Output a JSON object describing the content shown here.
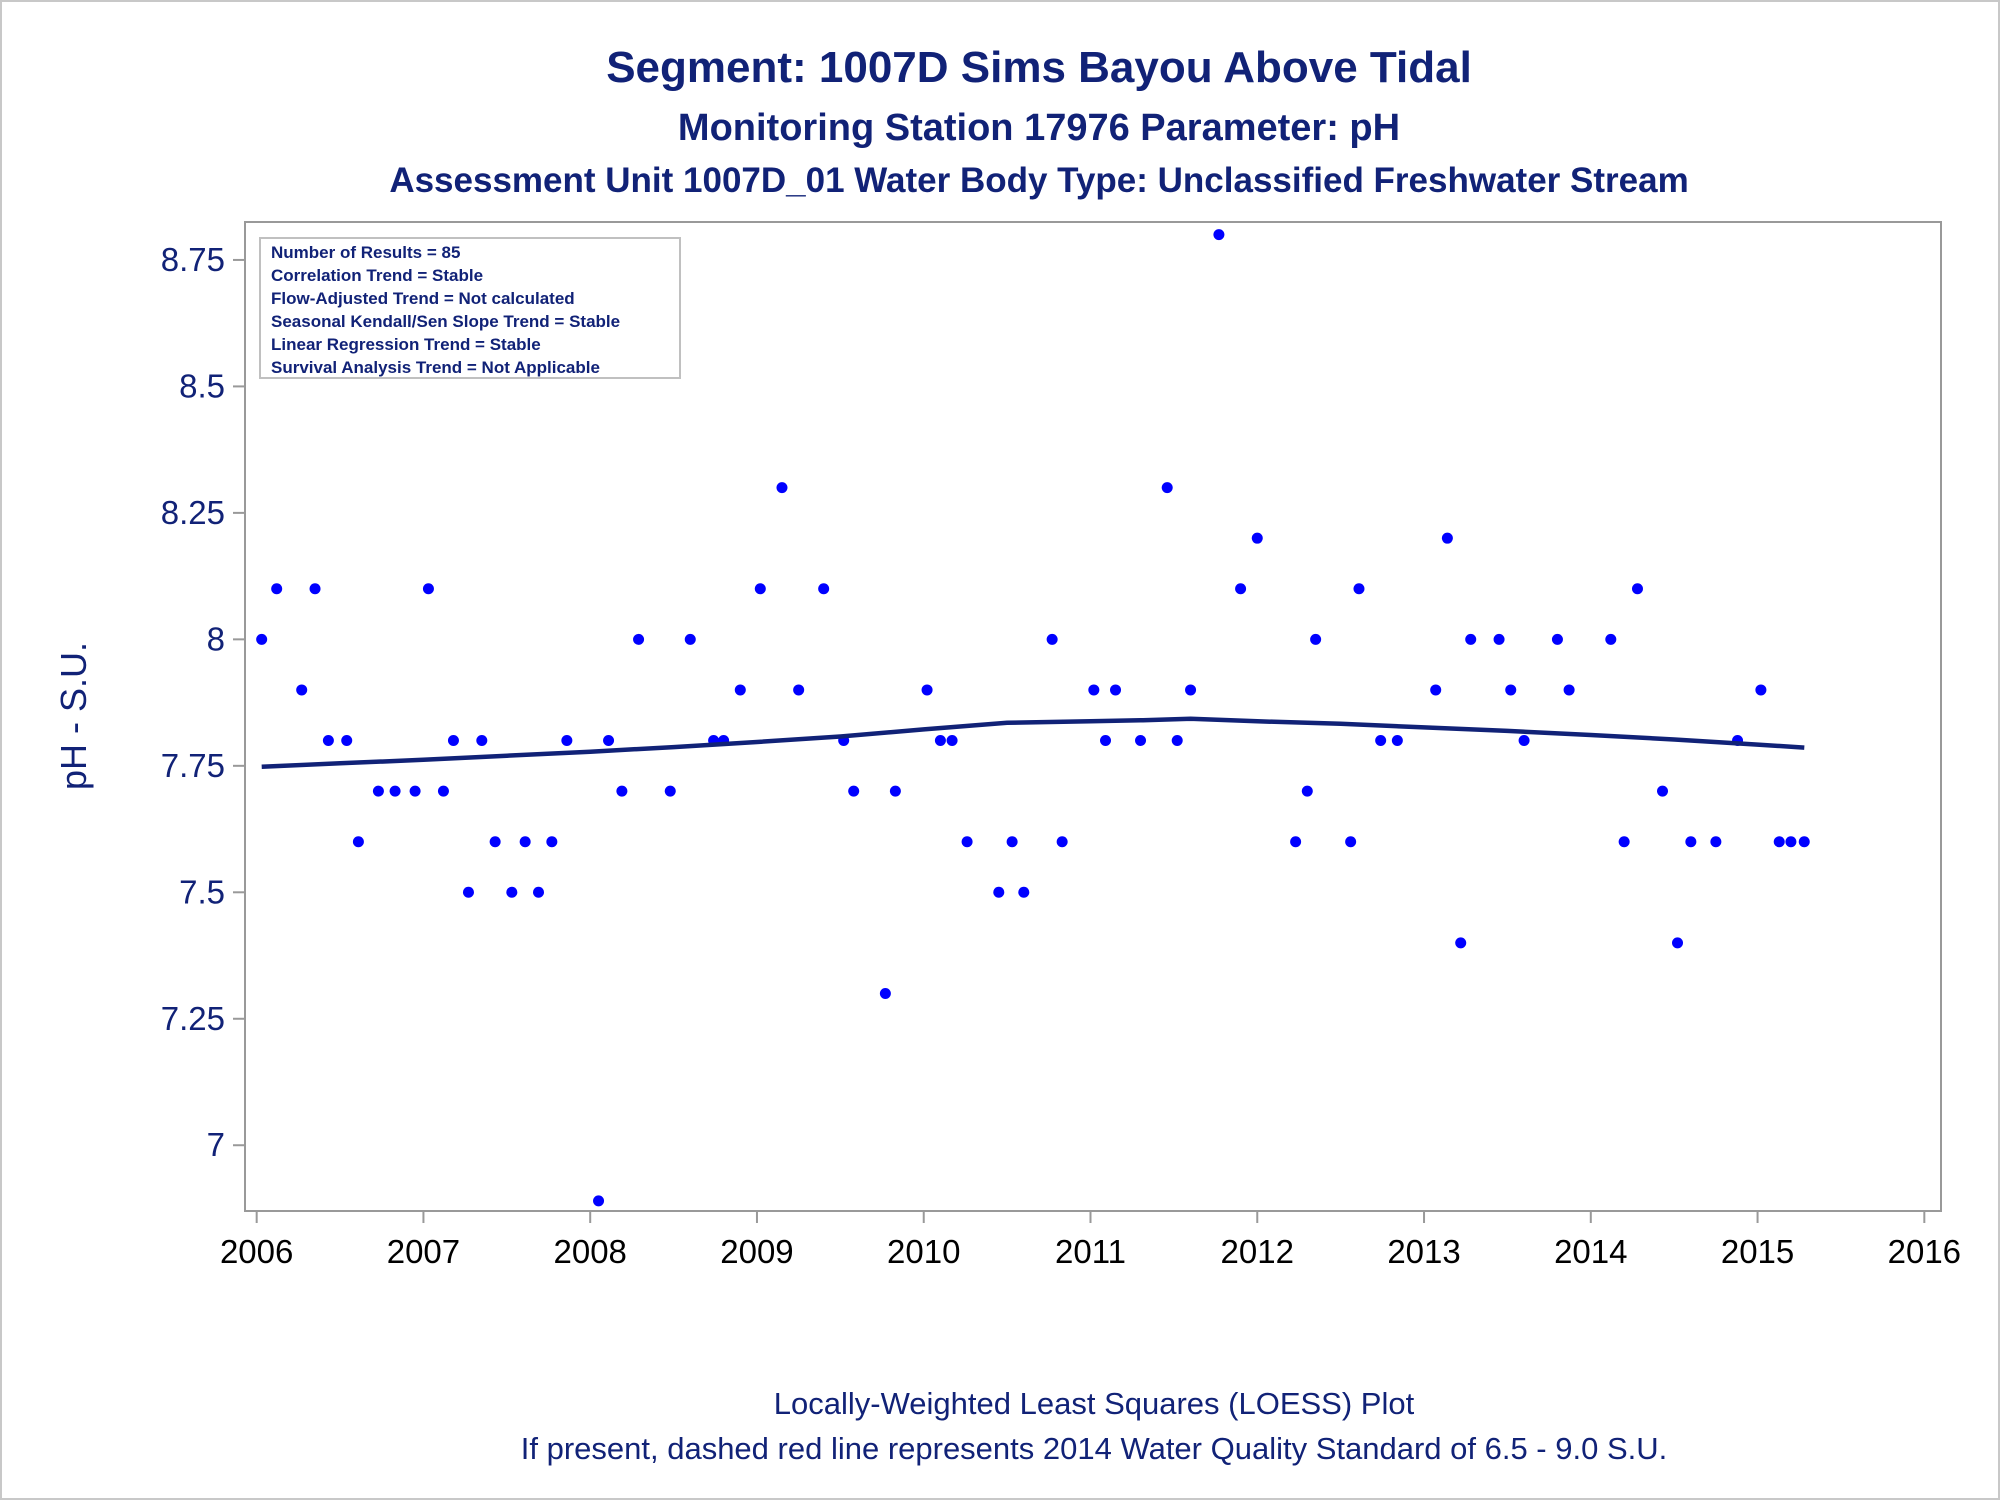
{
  "titles": {
    "line1": "Segment: 1007D  Sims Bayou Above Tidal",
    "line2": "Monitoring Station 17976 Parameter: pH",
    "line3": "Assessment Unit 1007D_01   Water Body Type: Unclassified Freshwater Stream"
  },
  "footnotes": {
    "line1": "Locally-Weighted Least Squares (LOESS) Plot",
    "line2": "If present, dashed red line represents 2014 Water Quality Standard of 6.5 - 9.0 S.U."
  },
  "stats_box": [
    "Number of Results = 85",
    "Correlation Trend = Stable",
    "Flow-Adjusted Trend = Not calculated",
    "Seasonal Kendall/Sen Slope Trend = Stable",
    "Linear Regression Trend = Stable",
    "Survival Analysis Trend = Not Applicable"
  ],
  "chart_data": {
    "type": "scatter",
    "ylabel": "pH - S.U.",
    "xlabel": "",
    "xlim": [
      2005.93,
      2016.1
    ],
    "ylim": [
      6.87,
      8.825
    ],
    "x_ticks": [
      2006,
      2007,
      2008,
      2009,
      2010,
      2011,
      2012,
      2013,
      2014,
      2015,
      2016
    ],
    "x_tick_labels": [
      "2006",
      "2007",
      "2008",
      "2009",
      "2010",
      "2011",
      "2012",
      "2013",
      "2014",
      "2015",
      "2016"
    ],
    "y_ticks": [
      7,
      7.25,
      7.5,
      7.75,
      8,
      8.25,
      8.5,
      8.75
    ],
    "y_tick_labels": [
      "7",
      "7.25",
      "7.5",
      "7.75",
      "8",
      "8.25",
      "8.5",
      "8.75"
    ],
    "grid": false,
    "colors": {
      "points": "#0000ff",
      "loess": "#112277",
      "frame": "#999999",
      "text": "#112277"
    },
    "points": [
      [
        2006.03,
        8.0
      ],
      [
        2006.12,
        8.1
      ],
      [
        2006.27,
        7.9
      ],
      [
        2006.35,
        8.1
      ],
      [
        2006.43,
        7.8
      ],
      [
        2006.54,
        7.8
      ],
      [
        2006.61,
        7.6
      ],
      [
        2006.73,
        7.7
      ],
      [
        2006.83,
        7.7
      ],
      [
        2006.95,
        7.7
      ],
      [
        2007.03,
        8.1
      ],
      [
        2007.12,
        7.7
      ],
      [
        2007.18,
        7.8
      ],
      [
        2007.27,
        7.5
      ],
      [
        2007.35,
        7.8
      ],
      [
        2007.43,
        7.6
      ],
      [
        2007.53,
        7.5
      ],
      [
        2007.61,
        7.6
      ],
      [
        2007.69,
        7.5
      ],
      [
        2007.77,
        7.6
      ],
      [
        2007.86,
        7.8
      ],
      [
        2008.05,
        6.89
      ],
      [
        2008.11,
        7.8
      ],
      [
        2008.19,
        7.7
      ],
      [
        2008.29,
        8.0
      ],
      [
        2008.48,
        7.7
      ],
      [
        2008.6,
        8.0
      ],
      [
        2008.74,
        7.8
      ],
      [
        2008.8,
        7.8
      ],
      [
        2008.9,
        7.9
      ],
      [
        2009.02,
        8.1
      ],
      [
        2009.15,
        8.3
      ],
      [
        2009.25,
        7.9
      ],
      [
        2009.4,
        8.1
      ],
      [
        2009.52,
        7.8
      ],
      [
        2009.58,
        7.7
      ],
      [
        2009.77,
        7.3
      ],
      [
        2009.83,
        7.7
      ],
      [
        2010.02,
        7.9
      ],
      [
        2010.1,
        7.8
      ],
      [
        2010.17,
        7.8
      ],
      [
        2010.26,
        7.6
      ],
      [
        2010.45,
        7.5
      ],
      [
        2010.53,
        7.6
      ],
      [
        2010.6,
        7.5
      ],
      [
        2010.77,
        8.0
      ],
      [
        2010.83,
        7.6
      ],
      [
        2011.02,
        7.9
      ],
      [
        2011.09,
        7.8
      ],
      [
        2011.15,
        7.9
      ],
      [
        2011.3,
        7.8
      ],
      [
        2011.46,
        8.3
      ],
      [
        2011.52,
        7.8
      ],
      [
        2011.6,
        7.9
      ],
      [
        2011.77,
        8.8
      ],
      [
        2011.9,
        8.1
      ],
      [
        2012.0,
        8.2
      ],
      [
        2012.23,
        7.6
      ],
      [
        2012.3,
        7.7
      ],
      [
        2012.35,
        8.0
      ],
      [
        2012.56,
        7.6
      ],
      [
        2012.61,
        8.1
      ],
      [
        2012.74,
        7.8
      ],
      [
        2012.84,
        7.8
      ],
      [
        2013.07,
        7.9
      ],
      [
        2013.14,
        8.2
      ],
      [
        2013.22,
        7.4
      ],
      [
        2013.28,
        8.0
      ],
      [
        2013.45,
        8.0
      ],
      [
        2013.52,
        7.9
      ],
      [
        2013.6,
        7.8
      ],
      [
        2013.8,
        8.0
      ],
      [
        2013.87,
        7.9
      ],
      [
        2014.12,
        8.0
      ],
      [
        2014.2,
        7.6
      ],
      [
        2014.28,
        8.1
      ],
      [
        2014.43,
        7.7
      ],
      [
        2014.52,
        7.4
      ],
      [
        2014.6,
        7.6
      ],
      [
        2014.75,
        7.6
      ],
      [
        2014.88,
        7.8
      ],
      [
        2015.02,
        7.9
      ],
      [
        2015.13,
        7.6
      ],
      [
        2015.2,
        7.6
      ],
      [
        2015.28,
        7.6
      ]
    ],
    "loess_curve": [
      [
        2006.03,
        7.748
      ],
      [
        2006.5,
        7.755
      ],
      [
        2007.0,
        7.762
      ],
      [
        2007.5,
        7.77
      ],
      [
        2008.0,
        7.778
      ],
      [
        2008.5,
        7.787
      ],
      [
        2009.0,
        7.797
      ],
      [
        2009.5,
        7.808
      ],
      [
        2010.0,
        7.822
      ],
      [
        2010.5,
        7.835
      ],
      [
        2011.0,
        7.838
      ],
      [
        2011.3,
        7.84
      ],
      [
        2011.6,
        7.843
      ],
      [
        2012.0,
        7.838
      ],
      [
        2012.5,
        7.833
      ],
      [
        2013.0,
        7.826
      ],
      [
        2013.5,
        7.819
      ],
      [
        2014.0,
        7.811
      ],
      [
        2014.5,
        7.802
      ],
      [
        2015.0,
        7.792
      ],
      [
        2015.28,
        7.786
      ]
    ]
  }
}
